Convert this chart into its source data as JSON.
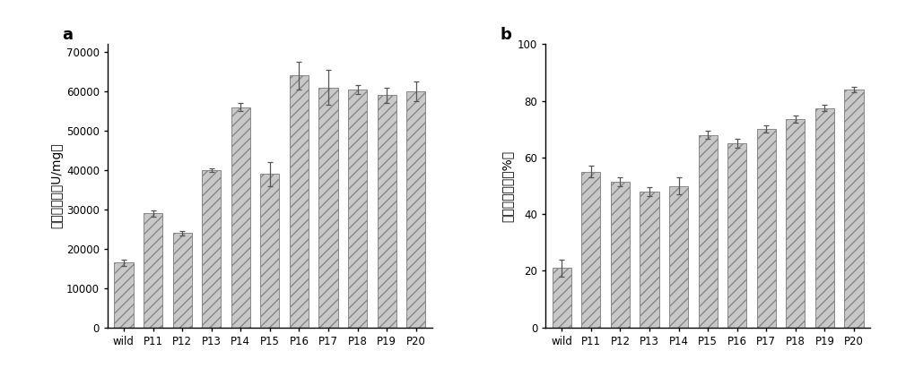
{
  "categories": [
    "wild",
    "P11",
    "P12",
    "P13",
    "P14",
    "P15",
    "P16",
    "P17",
    "P18",
    "P19",
    "P20"
  ],
  "values_a": [
    16500,
    29000,
    24000,
    40000,
    56000,
    39000,
    64000,
    61000,
    60500,
    59000,
    60000
  ],
  "errors_a": [
    800,
    800,
    600,
    500,
    1000,
    3000,
    3500,
    4500,
    1200,
    2000,
    2500
  ],
  "values_b": [
    21,
    55,
    51.5,
    48,
    50,
    68,
    65,
    70,
    73.5,
    77.5,
    84
  ],
  "errors_b": [
    3,
    2,
    1.5,
    1.5,
    3,
    1.5,
    1.5,
    1.2,
    1.2,
    1.2,
    1.0
  ],
  "ylabel_a": "初始比活力（U/mg）",
  "ylabel_b": "酶活力残留率（%）",
  "ylim_a": [
    0,
    72000
  ],
  "ylim_b": [
    0,
    100
  ],
  "yticks_a": [
    0,
    10000,
    20000,
    30000,
    40000,
    50000,
    60000,
    70000
  ],
  "yticks_b": [
    0,
    20,
    40,
    60,
    80,
    100
  ],
  "label_a": "a",
  "label_b": "b",
  "bar_color": "#c8c8c8",
  "hatch": "///",
  "bar_edgecolor": "#888888",
  "error_color": "#555555",
  "background_color": "#ffffff"
}
